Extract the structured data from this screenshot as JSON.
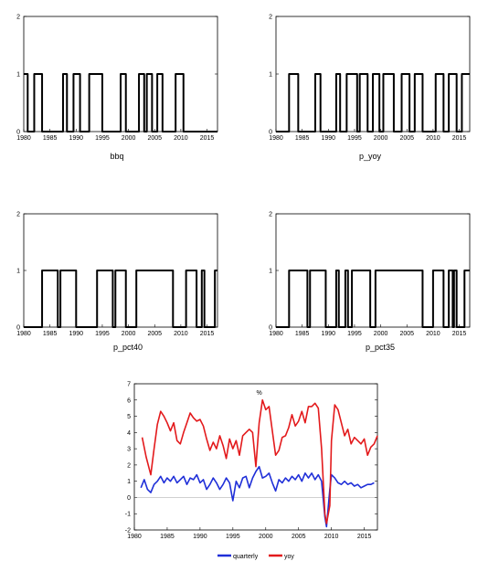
{
  "colors": {
    "binary": "#000000",
    "quarterly": "#1f2fd8",
    "yoy": "#e31a1c",
    "frame": "#000000"
  },
  "chart_data": [
    {
      "type": "line",
      "name": "bbq",
      "xlim": [
        1980,
        2017
      ],
      "ylim": [
        0,
        2
      ],
      "xticks": [
        "1980",
        "1985",
        "1990",
        "1995",
        "2000",
        "2005",
        "2010",
        "2015"
      ],
      "yticks": [
        "0",
        "1",
        "2"
      ],
      "step_series": [
        [
          1980,
          1
        ],
        [
          1980.75,
          0
        ],
        [
          1982,
          1
        ],
        [
          1983.5,
          0
        ],
        [
          1987.5,
          1
        ],
        [
          1988.25,
          0
        ],
        [
          1989.5,
          1
        ],
        [
          1990.75,
          0
        ],
        [
          1992.5,
          1
        ],
        [
          1995,
          0
        ],
        [
          1998.5,
          1
        ],
        [
          1999.5,
          0
        ],
        [
          2002,
          1
        ],
        [
          2003,
          0
        ],
        [
          2003.5,
          1
        ],
        [
          2004.5,
          0
        ],
        [
          2005.5,
          1
        ],
        [
          2006.5,
          0
        ],
        [
          2009,
          1
        ],
        [
          2010.5,
          0
        ],
        [
          2017,
          0
        ]
      ]
    },
    {
      "type": "line",
      "name": "p_yoy",
      "xlim": [
        1980,
        2017
      ],
      "ylim": [
        0,
        2
      ],
      "xticks": [
        "1980",
        "1985",
        "1990",
        "1995",
        "2000",
        "2005",
        "2010",
        "2015"
      ],
      "yticks": [
        "0",
        "1",
        "2"
      ],
      "step_series": [
        [
          1980,
          0
        ],
        [
          1982.5,
          1
        ],
        [
          1984.25,
          0
        ],
        [
          1987.5,
          1
        ],
        [
          1988.5,
          0
        ],
        [
          1991.5,
          1
        ],
        [
          1992.25,
          0
        ],
        [
          1993.5,
          1
        ],
        [
          1995.5,
          0
        ],
        [
          1996,
          1
        ],
        [
          1997.5,
          0
        ],
        [
          1998.5,
          1
        ],
        [
          1999.75,
          0
        ],
        [
          2000.5,
          1
        ],
        [
          2002.5,
          0
        ],
        [
          2004,
          1
        ],
        [
          2005.5,
          0
        ],
        [
          2006.5,
          1
        ],
        [
          2008,
          0
        ],
        [
          2010.5,
          1
        ],
        [
          2012,
          0
        ],
        [
          2013,
          1
        ],
        [
          2014.5,
          0
        ],
        [
          2015.5,
          1
        ],
        [
          2017,
          1
        ]
      ]
    },
    {
      "type": "line",
      "name": "p_pct40",
      "xlim": [
        1980,
        2017
      ],
      "ylim": [
        0,
        2
      ],
      "xticks": [
        "1980",
        "1985",
        "1990",
        "1995",
        "2000",
        "2005",
        "2010",
        "2015"
      ],
      "yticks": [
        "0",
        "1",
        "2"
      ],
      "step_series": [
        [
          1980,
          0
        ],
        [
          1983.5,
          1
        ],
        [
          1986.5,
          0
        ],
        [
          1987,
          1
        ],
        [
          1990,
          0
        ],
        [
          1994,
          1
        ],
        [
          1997,
          0
        ],
        [
          1997.5,
          1
        ],
        [
          1999.5,
          0
        ],
        [
          2001.5,
          1
        ],
        [
          2008.5,
          0
        ],
        [
          2011,
          1
        ],
        [
          2013,
          0
        ],
        [
          2014,
          1
        ],
        [
          2014.5,
          0
        ],
        [
          2016.5,
          1
        ],
        [
          2017,
          1
        ]
      ]
    },
    {
      "type": "line",
      "name": "p_pct35",
      "xlim": [
        1980,
        2017
      ],
      "ylim": [
        0,
        2
      ],
      "xticks": [
        "1980",
        "1985",
        "1990",
        "1995",
        "2000",
        "2005",
        "2010",
        "2015"
      ],
      "yticks": [
        "0",
        "1",
        "2"
      ],
      "step_series": [
        [
          1980,
          0
        ],
        [
          1982.5,
          1
        ],
        [
          1986,
          0
        ],
        [
          1986.5,
          1
        ],
        [
          1989.5,
          0
        ],
        [
          1991.5,
          1
        ],
        [
          1992,
          0
        ],
        [
          1993.25,
          1
        ],
        [
          1993.75,
          0
        ],
        [
          1994.5,
          1
        ],
        [
          1998,
          0
        ],
        [
          1999,
          1
        ],
        [
          2008,
          0
        ],
        [
          2010,
          1
        ],
        [
          2012,
          0
        ],
        [
          2013,
          1
        ],
        [
          2013.75,
          0
        ],
        [
          2014,
          1
        ],
        [
          2014.5,
          0
        ],
        [
          2016,
          1
        ],
        [
          2017,
          1
        ]
      ]
    },
    {
      "type": "line",
      "title": "%",
      "xlim": [
        1980,
        2017
      ],
      "ylim": [
        -2,
        7
      ],
      "xticks": [
        "1980",
        "1985",
        "1990",
        "1995",
        "2000",
        "2005",
        "2010",
        "2015"
      ],
      "yticks": [
        "-2",
        "-1",
        "0",
        "1",
        "2",
        "3",
        "4",
        "5",
        "6",
        "7"
      ],
      "legend": "bottom",
      "series": [
        {
          "name": "quarterly",
          "color": "#1f2fd8",
          "points": [
            [
              1981,
              0.6
            ],
            [
              1981.5,
              1.1
            ],
            [
              1982,
              0.5
            ],
            [
              1982.5,
              0.3
            ],
            [
              1983,
              0.8
            ],
            [
              1983.5,
              1.0
            ],
            [
              1984,
              1.3
            ],
            [
              1984.5,
              0.9
            ],
            [
              1985,
              1.2
            ],
            [
              1985.5,
              1.0
            ],
            [
              1986,
              1.3
            ],
            [
              1986.5,
              0.9
            ],
            [
              1987,
              1.1
            ],
            [
              1987.5,
              1.3
            ],
            [
              1988,
              0.8
            ],
            [
              1988.5,
              1.2
            ],
            [
              1989,
              1.1
            ],
            [
              1989.5,
              1.4
            ],
            [
              1990,
              0.9
            ],
            [
              1990.5,
              1.1
            ],
            [
              1991,
              0.5
            ],
            [
              1991.5,
              0.8
            ],
            [
              1992,
              1.2
            ],
            [
              1992.5,
              0.9
            ],
            [
              1993,
              0.5
            ],
            [
              1993.5,
              0.8
            ],
            [
              1994,
              1.2
            ],
            [
              1994.5,
              0.9
            ],
            [
              1995,
              -0.2
            ],
            [
              1995.5,
              1.0
            ],
            [
              1996,
              0.6
            ],
            [
              1996.5,
              1.2
            ],
            [
              1997,
              1.3
            ],
            [
              1997.5,
              0.6
            ],
            [
              1998,
              1.2
            ],
            [
              1998.5,
              1.6
            ],
            [
              1999,
              1.9
            ],
            [
              1999.5,
              1.2
            ],
            [
              2000,
              1.3
            ],
            [
              2000.5,
              1.5
            ],
            [
              2001,
              0.9
            ],
            [
              2001.5,
              0.4
            ],
            [
              2002,
              1.1
            ],
            [
              2002.5,
              0.9
            ],
            [
              2003,
              1.2
            ],
            [
              2003.5,
              1.0
            ],
            [
              2004,
              1.3
            ],
            [
              2004.5,
              1.1
            ],
            [
              2005,
              1.4
            ],
            [
              2005.5,
              1.0
            ],
            [
              2006,
              1.5
            ],
            [
              2006.5,
              1.2
            ],
            [
              2007,
              1.5
            ],
            [
              2007.5,
              1.1
            ],
            [
              2008,
              1.4
            ],
            [
              2008.5,
              1.0
            ],
            [
              2009,
              -1.2
            ],
            [
              2009.25,
              -1.8
            ],
            [
              2009.75,
              0.5
            ],
            [
              2010,
              1.4
            ],
            [
              2010.5,
              1.2
            ],
            [
              2011,
              0.9
            ],
            [
              2011.5,
              0.8
            ],
            [
              2012,
              1.0
            ],
            [
              2012.5,
              0.8
            ],
            [
              2013,
              0.9
            ],
            [
              2013.5,
              0.7
            ],
            [
              2014,
              0.8
            ],
            [
              2014.5,
              0.6
            ],
            [
              2015,
              0.7
            ],
            [
              2015.5,
              0.8
            ],
            [
              2016,
              0.8
            ],
            [
              2016.5,
              0.9
            ]
          ]
        },
        {
          "name": "yoy",
          "color": "#e31a1c",
          "points": [
            [
              1981.2,
              3.7
            ],
            [
              1981.8,
              2.5
            ],
            [
              1982.5,
              1.4
            ],
            [
              1983,
              3.0
            ],
            [
              1983.5,
              4.5
            ],
            [
              1984,
              5.3
            ],
            [
              1984.5,
              5.0
            ],
            [
              1985,
              4.6
            ],
            [
              1985.5,
              4.1
            ],
            [
              1986,
              4.6
            ],
            [
              1986.5,
              3.5
            ],
            [
              1987,
              3.3
            ],
            [
              1987.5,
              4.0
            ],
            [
              1988,
              4.6
            ],
            [
              1988.5,
              5.2
            ],
            [
              1989,
              4.9
            ],
            [
              1989.5,
              4.7
            ],
            [
              1990,
              4.8
            ],
            [
              1990.5,
              4.4
            ],
            [
              1991,
              3.6
            ],
            [
              1991.5,
              2.9
            ],
            [
              1992,
              3.4
            ],
            [
              1992.5,
              3.0
            ],
            [
              1993,
              3.8
            ],
            [
              1993.5,
              3.2
            ],
            [
              1994,
              2.4
            ],
            [
              1994.5,
              3.6
            ],
            [
              1995,
              3.0
            ],
            [
              1995.5,
              3.5
            ],
            [
              1996,
              2.6
            ],
            [
              1996.5,
              3.8
            ],
            [
              1997,
              4.0
            ],
            [
              1997.5,
              4.2
            ],
            [
              1998,
              4.0
            ],
            [
              1998.5,
              1.9
            ],
            [
              1999,
              4.6
            ],
            [
              1999.5,
              6.0
            ],
            [
              2000,
              5.4
            ],
            [
              2000.5,
              5.6
            ],
            [
              2001,
              4.1
            ],
            [
              2001.5,
              2.6
            ],
            [
              2002,
              2.9
            ],
            [
              2002.5,
              3.7
            ],
            [
              2003,
              3.8
            ],
            [
              2003.5,
              4.3
            ],
            [
              2004,
              5.1
            ],
            [
              2004.5,
              4.4
            ],
            [
              2005,
              4.7
            ],
            [
              2005.5,
              5.3
            ],
            [
              2006,
              4.6
            ],
            [
              2006.5,
              5.6
            ],
            [
              2007,
              5.6
            ],
            [
              2007.5,
              5.8
            ],
            [
              2008,
              5.5
            ],
            [
              2008.5,
              3.0
            ],
            [
              2009,
              -1.0
            ],
            [
              2009.25,
              -1.6
            ],
            [
              2009.75,
              -0.5
            ],
            [
              2010,
              3.5
            ],
            [
              2010.5,
              5.7
            ],
            [
              2011,
              5.4
            ],
            [
              2011.5,
              4.6
            ],
            [
              2012,
              3.8
            ],
            [
              2012.5,
              4.2
            ],
            [
              2013,
              3.3
            ],
            [
              2013.5,
              3.7
            ],
            [
              2014,
              3.5
            ],
            [
              2014.5,
              3.3
            ],
            [
              2015,
              3.6
            ],
            [
              2015.5,
              2.6
            ],
            [
              2016,
              3.1
            ],
            [
              2016.5,
              3.3
            ],
            [
              2017,
              3.8
            ]
          ]
        }
      ]
    }
  ]
}
